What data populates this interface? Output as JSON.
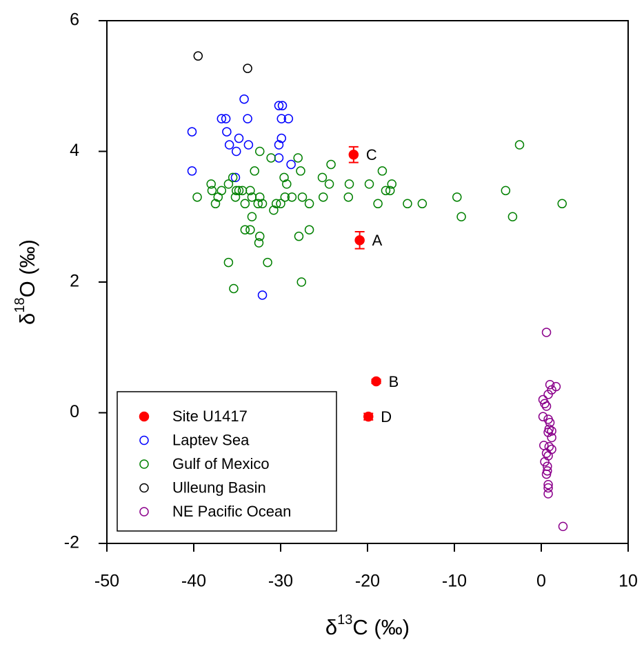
{
  "chart_data": {
    "type": "scatter",
    "xlabel": {
      "base": "δ",
      "sup": "13",
      "rest": "C (‰)"
    },
    "ylabel": {
      "base": "δ",
      "sup": "18",
      "rest": "O (‰)"
    },
    "xlim": [
      -50,
      10
    ],
    "ylim": [
      -2,
      6
    ],
    "xticks": [
      -50,
      -40,
      -30,
      -20,
      -10,
      0,
      10
    ],
    "yticks": [
      -2,
      0,
      2,
      4,
      6
    ],
    "series": [
      {
        "name": "Site U1417",
        "color": "#ff0000",
        "marker": "filled",
        "x": [
          -20.9,
          -19.0,
          -21.6,
          -19.9
        ],
        "y": [
          2.64,
          0.48,
          3.95,
          -0.06
        ],
        "y_err": [
          0.13,
          0.03,
          0.12,
          0.05
        ],
        "labels": [
          "A",
          "B",
          "C",
          "D"
        ]
      },
      {
        "name": "Laptev Sea",
        "color": "#0000ff",
        "marker": "open",
        "x": [
          -40.2,
          -40.2,
          -36.8,
          -36.3,
          -36.2,
          -35.9,
          -35.1,
          -34.8,
          -34.2,
          -33.8,
          -33.7,
          -30.2,
          -29.8,
          -29.9,
          -29.9,
          -29.1,
          -30.2,
          -30.2,
          -28.8,
          -35.2,
          -32.1
        ],
        "y": [
          4.3,
          3.7,
          4.5,
          4.5,
          4.3,
          4.1,
          4.0,
          4.2,
          4.8,
          4.5,
          4.1,
          4.7,
          4.7,
          4.5,
          4.2,
          4.5,
          4.1,
          3.9,
          3.8,
          3.6,
          1.8
        ]
      },
      {
        "name": "Gulf of Mexico",
        "color": "#008000",
        "marker": "open",
        "x": [
          -38.0,
          -37.9,
          -37.5,
          -37.2,
          -36.8,
          -39.6,
          -36.0,
          -35.5,
          -35.1,
          -34.8,
          -35.2,
          -34.4,
          -34.1,
          -33.5,
          -33.3,
          -33.3,
          -33.0,
          -32.6,
          -32.4,
          -32.1,
          -32.4,
          -34.1,
          -33.5,
          -32.4,
          -32.5,
          -36.0,
          -35.4,
          -31.5,
          -31.1,
          -30.8,
          -30.5,
          -30.0,
          -29.6,
          -29.3,
          -29.5,
          -28.7,
          -28.0,
          -27.7,
          -27.5,
          -27.9,
          -27.6,
          -26.7,
          -26.7,
          -25.2,
          -25.1,
          -24.4,
          -24.2,
          -22.2,
          -22.1,
          -19.8,
          -18.8,
          -18.3,
          -17.9,
          -17.4,
          -17.2,
          -15.4,
          -13.7,
          -9.7,
          -9.2,
          -4.1,
          -3.3,
          -2.5,
          2.4
        ],
        "y": [
          3.5,
          3.4,
          3.2,
          3.3,
          3.4,
          3.3,
          3.5,
          3.6,
          3.4,
          3.4,
          3.3,
          3.4,
          3.2,
          3.4,
          3.3,
          3.0,
          3.7,
          3.2,
          3.3,
          3.2,
          4.0,
          2.8,
          2.8,
          2.7,
          2.6,
          2.3,
          1.9,
          2.3,
          3.9,
          3.1,
          3.2,
          3.2,
          3.6,
          3.5,
          3.3,
          3.3,
          3.9,
          3.7,
          3.3,
          2.7,
          2.0,
          3.2,
          2.8,
          3.6,
          3.3,
          3.5,
          3.8,
          3.3,
          3.5,
          3.5,
          3.2,
          3.7,
          3.4,
          3.4,
          3.5,
          3.2,
          3.2,
          3.3,
          3.0,
          3.4,
          3.0,
          4.1,
          3.2
        ]
      },
      {
        "name": "Ulleung Basin",
        "color": "#000000",
        "marker": "open",
        "x": [
          -39.5,
          -33.8
        ],
        "y": [
          5.46,
          5.27
        ]
      },
      {
        "name": "NE Pacific Ocean",
        "color": "#8b008b",
        "marker": "open",
        "x": [
          0.6,
          1.0,
          1.7,
          1.2,
          0.8,
          0.2,
          0.4,
          0.6,
          0.2,
          0.8,
          1.0,
          0.9,
          1.2,
          0.8,
          1.2,
          0.3,
          0.9,
          1.2,
          0.6,
          0.8,
          0.4,
          0.7,
          0.7,
          0.6,
          0.8,
          0.8,
          0.8,
          2.5
        ],
        "y": [
          1.23,
          0.43,
          0.4,
          0.35,
          0.28,
          0.2,
          0.14,
          0.1,
          -0.06,
          -0.1,
          -0.15,
          -0.25,
          -0.28,
          -0.3,
          -0.38,
          -0.5,
          -0.52,
          -0.56,
          -0.62,
          -0.66,
          -0.75,
          -0.82,
          -0.89,
          -0.94,
          -1.1,
          -1.15,
          -1.24,
          -1.74
        ]
      }
    ]
  }
}
